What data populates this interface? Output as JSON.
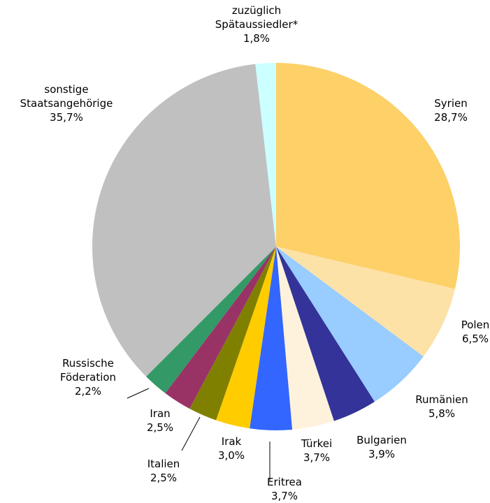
{
  "chart_data": {
    "type": "pie",
    "categories": [
      "Syrien",
      "Polen",
      "Rumänien",
      "Bulgarien",
      "Türkei",
      "Eritrea",
      "Irak",
      "Italien",
      "Iran",
      "Russische\nFöderation",
      "sonstige\nStaatsangehörige",
      "zuzüglich\nSpätaussiedler*"
    ],
    "values": [
      28.7,
      6.5,
      5.8,
      3.9,
      3.7,
      3.7,
      3.0,
      2.5,
      2.5,
      2.2,
      35.7,
      1.8
    ],
    "value_labels": [
      "28,7%",
      "6,5%",
      "5,8%",
      "3,9%",
      "3,7%",
      "3,7%",
      "3,0%",
      "2,5%",
      "2,5%",
      "2,2%",
      "35,7%",
      "1,8%"
    ],
    "colors": [
      "#fdd068",
      "#fde2a8",
      "#99ccff",
      "#333399",
      "#fff2dc",
      "#3366ff",
      "#ffcc00",
      "#808000",
      "#993366",
      "#339966",
      "#c0c0c0",
      "#ccffff"
    ]
  }
}
